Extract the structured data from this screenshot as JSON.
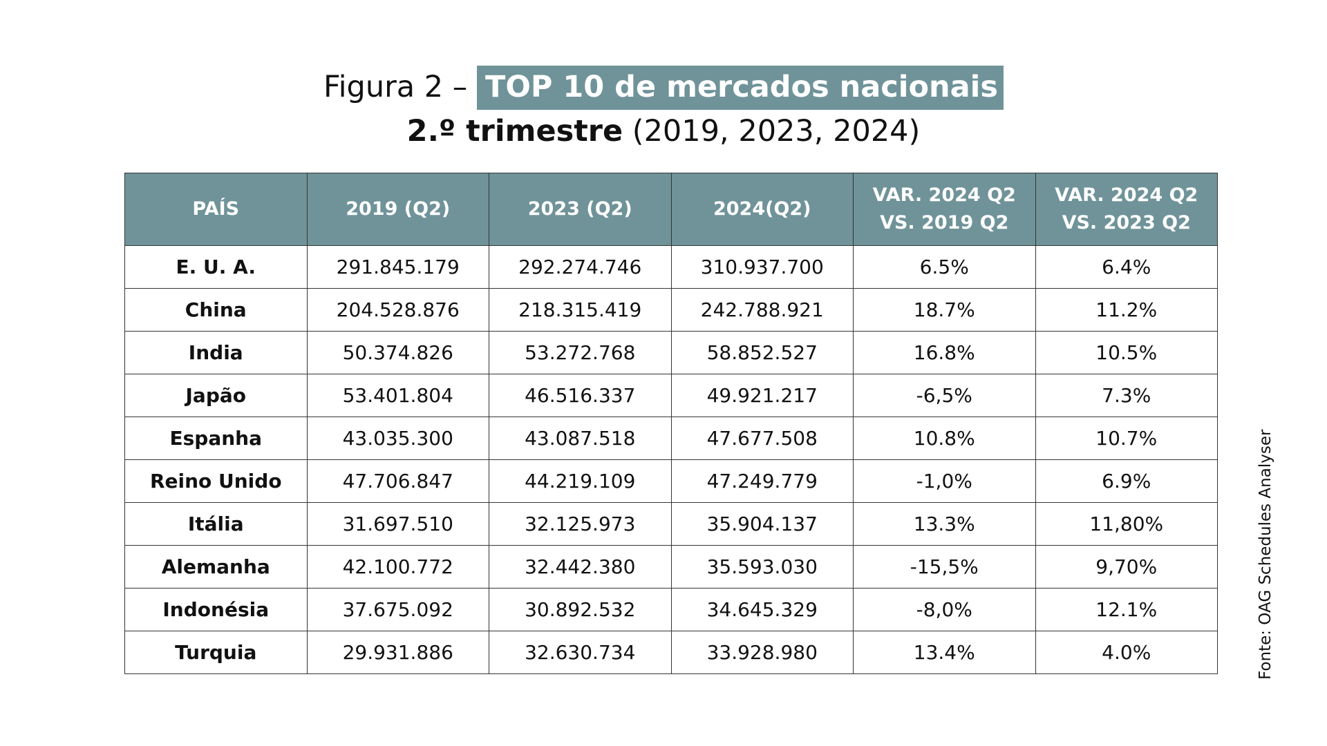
{
  "title": {
    "prefix": "Figura 2 – ",
    "highlight": "TOP 10 de mercados nacionais",
    "line2_bold": "2.º trimestre",
    "line2_rest": " (2019, 2023, 2024)"
  },
  "colors": {
    "header_bg": "#6f9399",
    "header_text": "#ffffff"
  },
  "table": {
    "headers": [
      "PAÍS",
      "2019 (Q2)",
      "2023 (Q2)",
      "2024(Q2)",
      "VAR. 2024 Q2 VS. 2019 Q2",
      "VAR. 2024 Q2 VS. 2023 Q2"
    ],
    "rows": [
      [
        "E. U. A.",
        "291.845.179",
        "292.274.746",
        "310.937.700",
        "6.5%",
        "6.4%"
      ],
      [
        "China",
        "204.528.876",
        "218.315.419",
        "242.788.921",
        "18.7%",
        "11.2%"
      ],
      [
        "India",
        "50.374.826",
        "53.272.768",
        "58.852.527",
        "16.8%",
        "10.5%"
      ],
      [
        "Japão",
        "53.401.804",
        "46.516.337",
        "49.921.217",
        "-6,5%",
        "7.3%"
      ],
      [
        "Espanha",
        "43.035.300",
        "43.087.518",
        "47.677.508",
        "10.8%",
        "10.7%"
      ],
      [
        "Reino Unido",
        "47.706.847",
        "44.219.109",
        "47.249.779",
        "-1,0%",
        "6.9%"
      ],
      [
        "Itália",
        "31.697.510",
        "32.125.973",
        "35.904.137",
        "13.3%",
        "11,80%"
      ],
      [
        "Alemanha",
        "42.100.772",
        "32.442.380",
        "35.593.030",
        "-15,5%",
        "9,70%"
      ],
      [
        "Indonésia",
        "37.675.092",
        "30.892.532",
        "34.645.329",
        "-8,0%",
        "12.1%"
      ],
      [
        "Turquia",
        "29.931.886",
        "32.630.734",
        "33.928.980",
        "13.4%",
        "4.0%"
      ]
    ]
  },
  "source": "Fonte: OAG Schedules Analyser"
}
